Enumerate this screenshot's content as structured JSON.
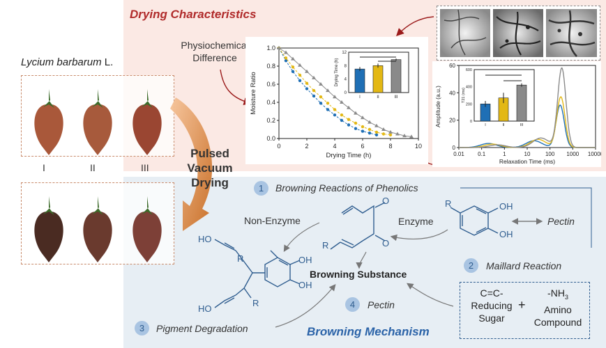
{
  "header": {
    "title": "Drying Characteristics"
  },
  "sample": {
    "species": "Lycium barbarum",
    "suffix": " L.",
    "groups": [
      "I",
      "II",
      "III"
    ]
  },
  "process": {
    "line1": "Pulsed",
    "line2": "Vacuum",
    "line3": "Drying"
  },
  "physio": {
    "line1": "Physiochemical",
    "line2": "Difference"
  },
  "mechanism": {
    "title": "Browning Mechanism",
    "steps": [
      {
        "num": "1",
        "label": "Browning Reactions of Phenolics"
      },
      {
        "num": "2",
        "label": "Maillard Reaction"
      },
      {
        "num": "3",
        "label": "Pigment Degradation"
      },
      {
        "num": "4",
        "label": "Pectin"
      }
    ],
    "non_enzyme": "Non-Enzyme",
    "enzyme": "Enzyme",
    "pectin_right": "Pectin",
    "browning_substance": "Browning Substance",
    "reaction": {
      "c1": "C=C-",
      "c2": "Reducing",
      "c3": "Sugar",
      "plus": "+",
      "a1": "-NH",
      "a1sub": "3",
      "a2": "Amino",
      "a3": "Compound"
    },
    "chem": {
      "R": "R",
      "OH": "OH",
      "O": "O",
      "HO": "HO"
    }
  },
  "colors": {
    "blue": "#1f6fb5",
    "yellow": "#e3b814",
    "gray": "#8a8a8a"
  },
  "chart_data": [
    {
      "type": "scatter",
      "title": "",
      "xlabel": "Drying Time (h)",
      "ylabel": "Moisture Ratio",
      "xlim": [
        0,
        10
      ],
      "ylim": [
        0,
        1.0
      ],
      "xticks": [
        "0",
        "2",
        "4",
        "6",
        "8",
        "10"
      ],
      "yticks": [
        "0.0",
        "0.2",
        "0.4",
        "0.6",
        "0.8",
        "1.0"
      ],
      "series": [
        {
          "name": "I",
          "color": "#1f6fb5",
          "x": [
            0,
            0.5,
            1,
            1.5,
            2,
            2.5,
            3,
            3.5,
            4,
            4.5,
            5,
            5.5,
            6,
            6.5,
            7
          ],
          "y": [
            1.0,
            0.86,
            0.74,
            0.64,
            0.55,
            0.47,
            0.39,
            0.32,
            0.26,
            0.2,
            0.15,
            0.11,
            0.08,
            0.06,
            0.04
          ]
        },
        {
          "name": "II",
          "color": "#e3b814",
          "x": [
            0,
            0.5,
            1,
            1.5,
            2,
            2.5,
            3,
            3.5,
            4,
            4.5,
            5,
            5.5,
            6,
            6.5,
            7,
            7.5,
            8
          ],
          "y": [
            1.0,
            0.89,
            0.79,
            0.7,
            0.61,
            0.53,
            0.46,
            0.39,
            0.32,
            0.26,
            0.21,
            0.17,
            0.13,
            0.1,
            0.07,
            0.05,
            0.04
          ]
        },
        {
          "name": "III",
          "color": "#8a8a8a",
          "x": [
            0,
            0.5,
            1,
            1.5,
            2,
            2.5,
            3,
            3.5,
            4,
            4.5,
            5,
            5.5,
            6,
            6.5,
            7,
            7.5,
            8,
            8.5,
            9,
            9.5
          ],
          "y": [
            1.0,
            0.95,
            0.88,
            0.81,
            0.74,
            0.67,
            0.6,
            0.53,
            0.46,
            0.4,
            0.34,
            0.28,
            0.23,
            0.18,
            0.14,
            0.1,
            0.07,
            0.05,
            0.03,
            0.02
          ]
        }
      ]
    },
    {
      "type": "bar",
      "ylabel": "Drying Time (h)",
      "categories": [
        "I",
        "II",
        "III"
      ],
      "values": [
        7,
        8,
        9.8
      ],
      "errors": [
        0.6,
        0.6,
        0.3
      ],
      "ylim": [
        0,
        12
      ],
      "yticks": [
        "0",
        "4",
        "8",
        "12"
      ]
    },
    {
      "type": "line",
      "xlabel": "Relaxation Time (ms)",
      "ylabel": "Amplitude (a.u.)",
      "xscale": "log",
      "xlim": [
        0.01,
        10000
      ],
      "ylim": [
        0,
        60
      ],
      "xticks": [
        "0.01",
        "0.1",
        "1",
        "10",
        "100",
        "1000",
        "10000"
      ],
      "yticks": [
        "0",
        "20",
        "40",
        "60"
      ],
      "series": [
        {
          "name": "I",
          "color": "#1f6fb5",
          "peaks": [
            [
              0.2,
              3
            ],
            [
              20,
              5
            ],
            [
              280,
              31
            ]
          ]
        },
        {
          "name": "II",
          "color": "#e3b814",
          "peaks": [
            [
              0.3,
              2.5
            ],
            [
              30,
              6
            ],
            [
              300,
              37
            ]
          ]
        },
        {
          "name": "III",
          "color": "#8a8a8a",
          "peaks": [
            [
              0.5,
              2
            ],
            [
              40,
              7
            ],
            [
              330,
              58
            ]
          ]
        }
      ]
    },
    {
      "type": "bar",
      "ylabel": "T21 (ms)",
      "categories": [
        "I",
        "II",
        "III"
      ],
      "values": [
        200,
        270,
        420
      ],
      "errors": [
        35,
        60,
        20
      ],
      "ylim": [
        0,
        600
      ],
      "yticks": [
        "0",
        "200",
        "400",
        "600"
      ]
    }
  ]
}
